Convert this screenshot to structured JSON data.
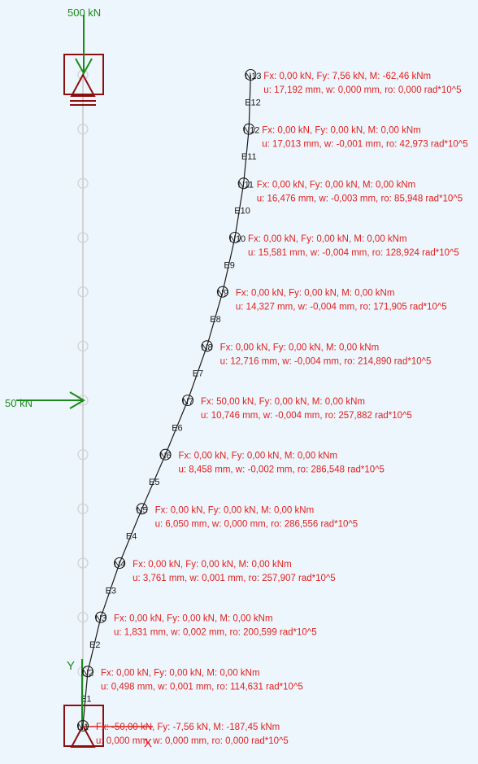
{
  "loads": {
    "top_force": "500 kN",
    "side_force": "50 kN"
  },
  "axes": {
    "y_label": "Y",
    "x_label": "X"
  },
  "nodes": [
    {
      "label": "N1",
      "reaction": "Fx: -50,00 kN, Fy: -7,56 kN, M: -187,45 kNm",
      "displacement": "u: 0,000 mm, w: 0,000 mm, ro: 0,000 rad*10^5"
    },
    {
      "label": "N2",
      "reaction": "Fx: 0,00 kN, Fy: 0,00 kN, M: 0,00 kNm",
      "displacement": "u: 0,498 mm, w: 0,001 mm, ro: 114,631 rad*10^5"
    },
    {
      "label": "N3",
      "reaction": "Fx: 0,00 kN, Fy: 0,00 kN, M: 0,00 kNm",
      "displacement": "u: 1,831 mm, w: 0,002 mm, ro: 200,599 rad*10^5"
    },
    {
      "label": "N4",
      "reaction": "Fx: 0,00 kN, Fy: 0,00 kN, M: 0,00 kNm",
      "displacement": "u: 3,761 mm, w: 0,001 mm, ro: 257,907 rad*10^5"
    },
    {
      "label": "N5",
      "reaction": "Fx: 0,00 kN, Fy: 0,00 kN, M: 0,00 kNm",
      "displacement": "u: 6,050 mm, w: 0,000 mm, ro: 286,556 rad*10^5"
    },
    {
      "label": "N6",
      "reaction": "Fx: 0,00 kN, Fy: 0,00 kN, M: 0,00 kNm",
      "displacement": "u: 8,458 mm, w: -0,002 mm, ro: 286,548 rad*10^5"
    },
    {
      "label": "N7",
      "reaction": "Fx: 50,00 kN, Fy: 0,00 kN, M: 0,00 kNm",
      "displacement": "u: 10,746 mm, w: -0,004 mm, ro: 257,882 rad*10^5"
    },
    {
      "label": "N8",
      "reaction": "Fx: 0,00 kN, Fy: 0,00 kN, M: 0,00 kNm",
      "displacement": "u: 12,716 mm, w: -0,004 mm, ro: 214,890 rad*10^5"
    },
    {
      "label": "N9",
      "reaction": "Fx: 0,00 kN, Fy: 0,00 kN, M: 0,00 kNm",
      "displacement": "u: 14,327 mm, w: -0,004 mm, ro: 171,905 rad*10^5"
    },
    {
      "label": "N10",
      "reaction": "Fx: 0,00 kN, Fy: 0,00 kN, M: 0,00 kNm",
      "displacement": "u: 15,581 mm, w: -0,004 mm, ro: 128,924 rad*10^5"
    },
    {
      "label": "N11",
      "reaction": "Fx: 0,00 kN, Fy: 0,00 kN, M: 0,00 kNm",
      "displacement": "u: 16,476 mm, w: -0,003 mm, ro: 85,948 rad*10^5"
    },
    {
      "label": "N12",
      "reaction": "Fx: 0,00 kN, Fy: 0,00 kN, M: 0,00 kNm",
      "displacement": "u: 17,013 mm, w: -0,001 mm, ro: 42,973 rad*10^5"
    },
    {
      "label": "N13",
      "reaction": "Fx: 0,00 kN, Fy: 7,56 kN, M: -62,46 kNm",
      "displacement": "u: 17,192 mm, w: 0,000 mm, ro: 0,000 rad*10^5"
    }
  ],
  "elements": [
    "E1",
    "E2",
    "E3",
    "E4",
    "E5",
    "E6",
    "E7",
    "E8",
    "E9",
    "E10",
    "E11",
    "E12"
  ],
  "colors": {
    "background": "#eef6fd",
    "results_text": "#e0201e",
    "support": "#8b0f0f",
    "load": "#1a8a1a",
    "beam": "#1a1a1a",
    "undeformed": "#cfcfcf"
  }
}
